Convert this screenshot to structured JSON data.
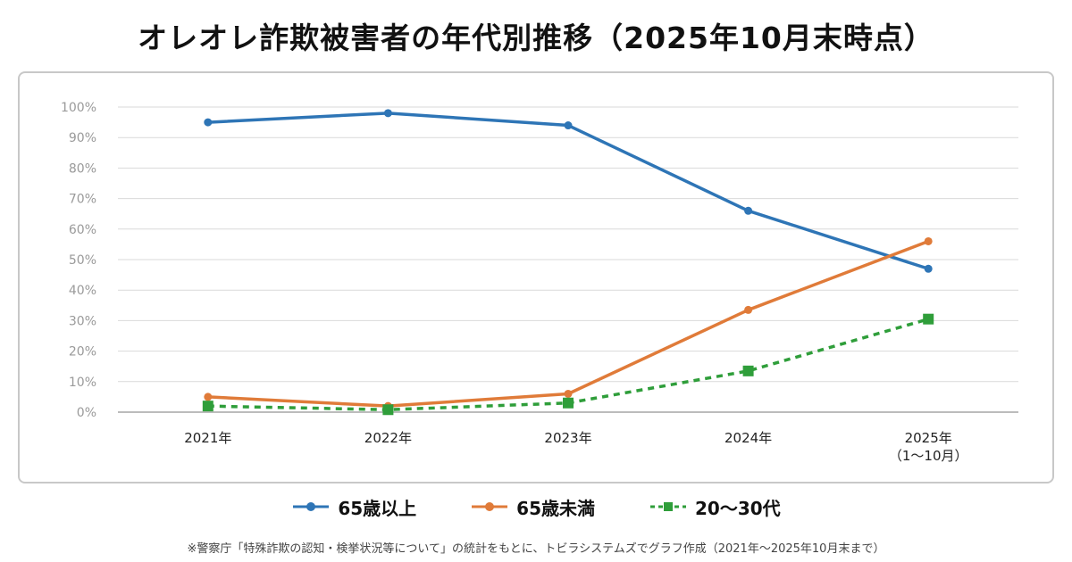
{
  "title": "オレオレ詐欺被害者の年代別推移（2025年10月末時点）",
  "footnote": "※警察庁「特殊詐欺の認知・検挙状況等について」の統計をもとに、トビラシステムズでグラフ作成（2021年〜2025年10月末まで）",
  "chart_data": {
    "type": "line",
    "title": "オレオレ詐欺被害者の年代別推移（2025年10月末時点）",
    "xlabel": "",
    "ylabel": "",
    "categories": [
      [
        "2021年"
      ],
      [
        "2022年"
      ],
      [
        "2023年"
      ],
      [
        "2024年"
      ],
      [
        "2025年",
        "（1〜10月）"
      ]
    ],
    "yticks": [
      "0%",
      "10%",
      "20%",
      "30%",
      "40%",
      "50%",
      "60%",
      "70%",
      "80%",
      "90%",
      "100%"
    ],
    "ylim": [
      0,
      100
    ],
    "grid": true,
    "legend_position": "bottom",
    "series": [
      {
        "name": "65歳以上",
        "values": [
          95,
          98,
          94,
          66,
          47
        ],
        "color": "#2e75b6",
        "marker": "circle",
        "dash": "solid"
      },
      {
        "name": "65歳未満",
        "values": [
          5,
          2,
          6,
          33.5,
          56
        ],
        "color": "#e07b39",
        "marker": "circle",
        "dash": "solid"
      },
      {
        "name": "20〜30代",
        "values": [
          2,
          0.8,
          3,
          13.5,
          30.5
        ],
        "color": "#2f9e3a",
        "marker": "square",
        "dash": "dashed"
      }
    ]
  }
}
